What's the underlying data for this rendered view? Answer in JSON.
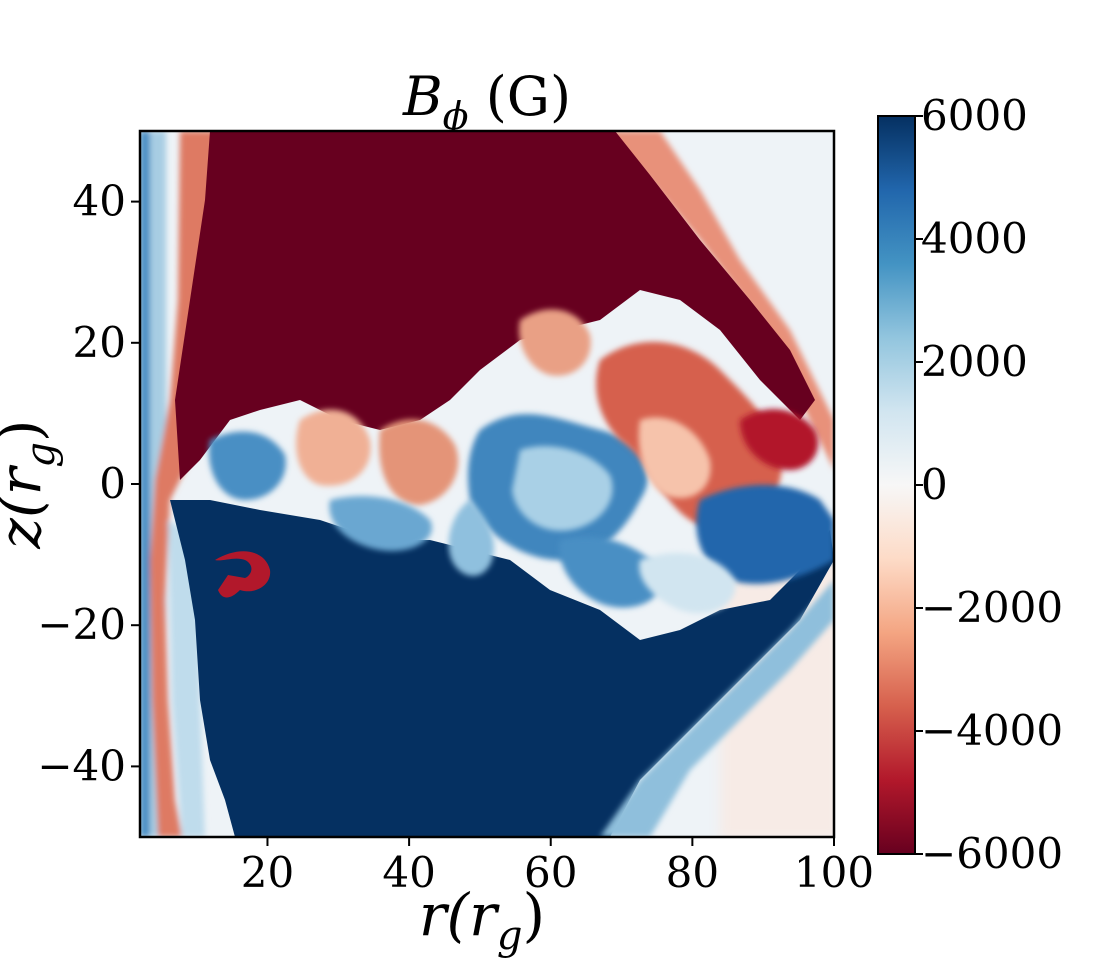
{
  "chart_data": {
    "type": "heatmap",
    "title": {
      "main": "B",
      "sub": "ϕ",
      "unit": " (G)"
    },
    "xlabel": {
      "main": "r(r",
      "sub": "g",
      "end": ")"
    },
    "ylabel": {
      "main": "z(r",
      "sub": "g",
      "end": ")"
    },
    "xlim": [
      2,
      100
    ],
    "ylim": [
      -50,
      50
    ],
    "xticks": [
      20,
      40,
      60,
      80,
      100
    ],
    "yticks": [
      -40,
      -20,
      0,
      20,
      40
    ],
    "xtick_labels": [
      "20",
      "40",
      "60",
      "80",
      "100"
    ],
    "ytick_labels": [
      "−40",
      "−20",
      "0",
      "20",
      "40"
    ],
    "colorbar": {
      "colormap": "RdBu",
      "range": [
        -6000,
        6000
      ],
      "ticks": [
        -6000,
        -4000,
        -2000,
        0,
        2000,
        4000,
        6000
      ],
      "tick_labels": [
        "−6000",
        "−4000",
        "−2000",
        "0",
        "2000",
        "4000",
        "6000"
      ]
    },
    "colormap_stops": [
      "#67001f",
      "#b2182b",
      "#d6604d",
      "#f4a582",
      "#fddbc7",
      "#f7f7f7",
      "#d1e5f0",
      "#92c5de",
      "#4393c3",
      "#2166ac",
      "#053061"
    ],
    "field_regions": [
      {
        "name": "upper-negative-lobe",
        "value": -6000
      },
      {
        "name": "lower-positive-lobe",
        "value": 6000
      },
      {
        "name": "outer-background",
        "value": 300
      },
      {
        "name": "turbulent-midplane",
        "value": "mixed"
      }
    ]
  }
}
